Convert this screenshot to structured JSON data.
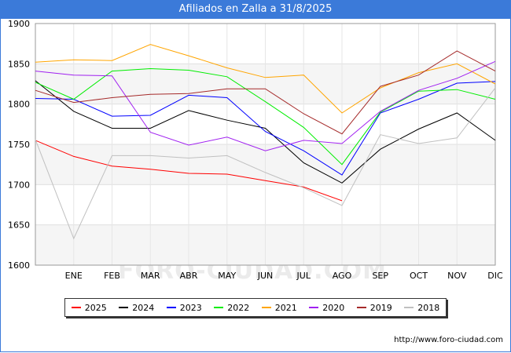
{
  "title": "Afiliados en Zalla a 31/8/2025",
  "footer": "http://www.foro-ciudad.com",
  "watermark": "FORO-CIUDAD.COM",
  "chart_data": {
    "type": "line",
    "title": "Afiliados en Zalla a 31/8/2025",
    "categories": [
      "",
      "ENE",
      "FEB",
      "MAR",
      "ABR",
      "MAY",
      "JUN",
      "JUL",
      "AGO",
      "SEP",
      "OCT",
      "NOV",
      "DIC"
    ],
    "ylim": [
      1600,
      1900
    ],
    "yticks": [
      1600,
      1650,
      1700,
      1750,
      1800,
      1850,
      1900
    ],
    "series": [
      {
        "name": "2025",
        "color": "#ff0000",
        "values": [
          1755,
          1735,
          1723,
          1719,
          1714,
          1713,
          1705,
          1697,
          1680,
          null,
          null,
          null,
          null
        ]
      },
      {
        "name": "2024",
        "color": "#000000",
        "values": [
          1829,
          1791,
          1770,
          1770,
          1792,
          1780,
          1770,
          1727,
          1702,
          1744,
          1769,
          1789,
          1755
        ]
      },
      {
        "name": "2023",
        "color": "#0000ff",
        "values": [
          1807,
          1806,
          1785,
          1786,
          1811,
          1808,
          1766,
          1742,
          1712,
          1789,
          1806,
          1826,
          1828
        ]
      },
      {
        "name": "2022",
        "color": "#00ee00",
        "values": [
          1827,
          1806,
          1841,
          1844,
          1842,
          1834,
          1803,
          1771,
          1725,
          1790,
          1816,
          1818,
          1806
        ]
      },
      {
        "name": "2021",
        "color": "#ffa500",
        "values": [
          1852,
          1855,
          1854,
          1874,
          1860,
          1845,
          1833,
          1836,
          1789,
          1820,
          1839,
          1850,
          1825
        ]
      },
      {
        "name": "2020",
        "color": "#a020f0",
        "values": [
          1841,
          1836,
          1835,
          1765,
          1749,
          1759,
          1742,
          1755,
          1751,
          1791,
          1817,
          1832,
          1853
        ]
      },
      {
        "name": "2019",
        "color": "#a52a2a",
        "values": [
          1817,
          1802,
          1808,
          1812,
          1813,
          1819,
          1819,
          1788,
          1763,
          1822,
          1836,
          1866,
          1841
        ]
      },
      {
        "name": "2018",
        "color": "#c0c0c0",
        "values": [
          1756,
          1633,
          1736,
          1736,
          1733,
          1736,
          1715,
          1696,
          1674,
          1762,
          1751,
          1758,
          1820
        ]
      }
    ]
  }
}
